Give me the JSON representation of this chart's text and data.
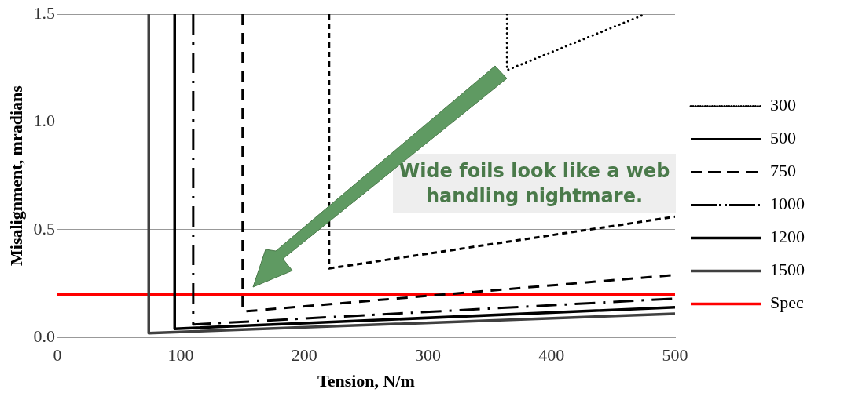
{
  "chart_data": {
    "type": "line",
    "xlabel": "Tension, N/m",
    "ylabel": "Misalignment, mradians",
    "xlim": [
      0,
      500
    ],
    "xticks": [
      0,
      100,
      200,
      300,
      400,
      500
    ],
    "ylim": [
      0,
      1.5
    ],
    "yticks": [
      {
        "value": 0,
        "label": "0.0"
      },
      {
        "value": 0.5,
        "label": "0.5"
      },
      {
        "value": 1,
        "label": "1.0"
      },
      {
        "value": 1.5,
        "label": "1.5"
      }
    ],
    "grid": "y",
    "legend": "right",
    "marker": "none",
    "annotations": [
      "Wide foils look like a web handling nightmare."
    ],
    "series": [
      {
        "name": "300",
        "color": "#000000",
        "line_style": "dotted",
        "x": [
          364,
          364,
          476
        ],
        "values": [
          1.5,
          1.24,
          1.5
        ]
      },
      {
        "name": "500",
        "color": "#000000",
        "line_style": "dashed",
        "x": [
          220,
          220,
          500
        ],
        "values": [
          1.5,
          0.32,
          0.56
        ]
      },
      {
        "name": "750",
        "color": "#000000",
        "line_style": "dashed",
        "x": [
          150,
          150,
          500
        ],
        "values": [
          1.5,
          0.12,
          0.29
        ]
      },
      {
        "name": "1000",
        "color": "#000000",
        "line_style": "dashed",
        "x": [
          110,
          110,
          500
        ],
        "values": [
          1.5,
          0.06,
          0.18
        ]
      },
      {
        "name": "1200",
        "color": "#000000",
        "line_style": "solid",
        "x": [
          95,
          95,
          500
        ],
        "values": [
          1.5,
          0.04,
          0.14
        ]
      },
      {
        "name": "1500",
        "color": "#404040",
        "line_style": "solid",
        "x": [
          74,
          74,
          500
        ],
        "values": [
          1.5,
          0.02,
          0.11
        ]
      },
      {
        "name": "Spec",
        "color": "#ff0000",
        "line_style": "solid",
        "x": [
          0,
          500
        ],
        "values": [
          0.2,
          0.2
        ]
      }
    ]
  }
}
